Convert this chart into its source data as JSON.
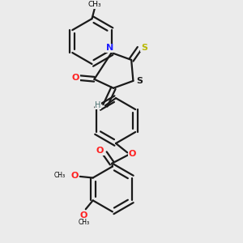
{
  "background_color": "#ebebeb",
  "bond_color": "#1a1a1a",
  "bond_lw": 1.6,
  "atom_colors": {
    "N": "#2020ff",
    "O": "#ff2020",
    "S_thione": "#b8b800",
    "S_ring": "#1a1a1a",
    "H": "#4a7070"
  },
  "fig_width": 3.0,
  "fig_height": 3.0,
  "dpi": 100,
  "xlim": [
    0.08,
    0.92
  ],
  "ylim": [
    0.04,
    0.96
  ]
}
